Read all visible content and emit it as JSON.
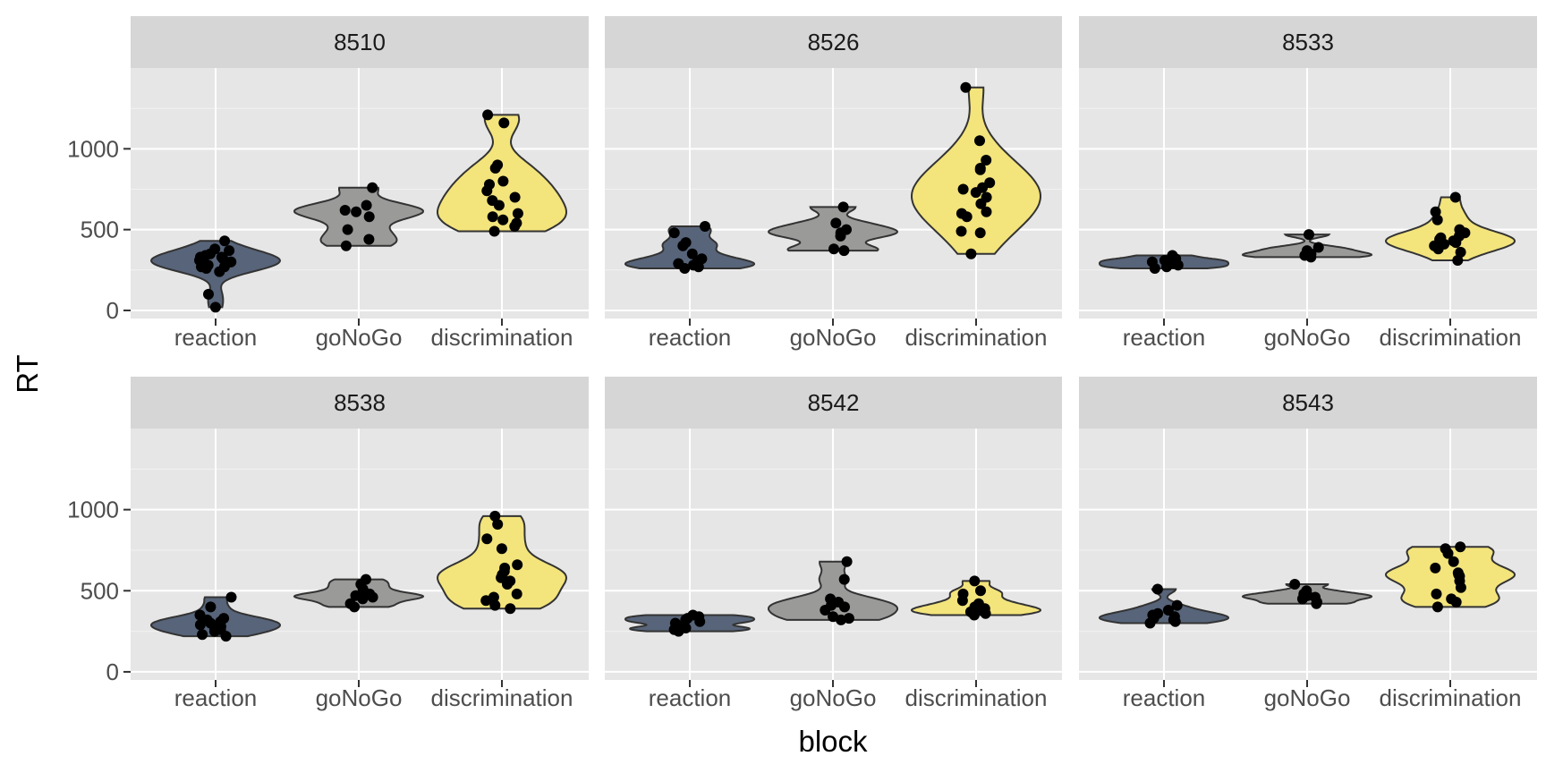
{
  "chart_data": {
    "type": "violin",
    "xlabel": "block",
    "ylabel": "RT",
    "ylim": [
      -50,
      1500
    ],
    "yticks": [
      0,
      500,
      1000
    ],
    "categories": [
      "reaction",
      "goNoGo",
      "discrimination"
    ],
    "colors": {
      "reaction": "#576479",
      "goNoGo": "#9a9a99",
      "discrimination": "#f3e47c",
      "panel_bg": "#e6e6e6",
      "strip_bg": "#d6d6d6",
      "point": "#000000"
    },
    "layout": "2 rows x 3 columns",
    "facets": [
      {
        "label": "8510",
        "groups": [
          {
            "category": "reaction",
            "points": [
              310,
              340,
              330,
              280,
              260,
              270,
              300,
              290,
              350,
              370,
              320,
              430,
              380,
              100,
              20,
              240,
              300,
              330,
              270
            ]
          },
          {
            "category": "goNoGo",
            "points": [
              760,
              650,
              620,
              610,
              580,
              500,
              440,
              400
            ]
          },
          {
            "category": "discrimination",
            "points": [
              1210,
              1160,
              900,
              880,
              800,
              780,
              740,
              700,
              680,
              650,
              600,
              580,
              560,
              540,
              520,
              490
            ]
          }
        ]
      },
      {
        "label": "8526",
        "groups": [
          {
            "category": "reaction",
            "points": [
              520,
              480,
              420,
              400,
              350,
              320,
              300,
              290,
              280,
              270,
              260
            ]
          },
          {
            "category": "goNoGo",
            "points": [
              640,
              540,
              500,
              480,
              460,
              380,
              370
            ]
          },
          {
            "category": "discrimination",
            "points": [
              1380,
              1050,
              930,
              880,
              870,
              790,
              760,
              750,
              730,
              700,
              660,
              610,
              600,
              580,
              490,
              480,
              350
            ]
          }
        ]
      },
      {
        "label": "8533",
        "groups": [
          {
            "category": "reaction",
            "points": [
              340,
              320,
              310,
              300,
              290,
              280,
              270,
              260
            ]
          },
          {
            "category": "goNoGo",
            "points": [
              470,
              390,
              370,
              350,
              340,
              330
            ]
          },
          {
            "category": "discrimination",
            "points": [
              700,
              610,
              560,
              500,
              480,
              460,
              450,
              440,
              430,
              420,
              410,
              400,
              380,
              360,
              310
            ]
          }
        ]
      },
      {
        "label": "8538",
        "groups": [
          {
            "category": "reaction",
            "points": [
              460,
              400,
              350,
              330,
              320,
              310,
              300,
              290,
              280,
              270,
              260,
              250,
              230,
              220
            ]
          },
          {
            "category": "goNoGo",
            "points": [
              570,
              540,
              510,
              480,
              470,
              460,
              450,
              420,
              400
            ]
          },
          {
            "category": "discrimination",
            "points": [
              960,
              910,
              820,
              760,
              660,
              640,
              620,
              600,
              580,
              560,
              540,
              480,
              460,
              440,
              410,
              390
            ]
          }
        ]
      },
      {
        "label": "8542",
        "groups": [
          {
            "category": "reaction",
            "points": [
              350,
              340,
              330,
              320,
              310,
              300,
              280,
              270,
              260,
              250
            ]
          },
          {
            "category": "goNoGo",
            "points": [
              680,
              570,
              450,
              430,
              410,
              400,
              380,
              340,
              330,
              320
            ]
          },
          {
            "category": "discrimination",
            "points": [
              560,
              500,
              480,
              440,
              420,
              400,
              390,
              380,
              370,
              360,
              350
            ]
          }
        ]
      },
      {
        "label": "8543",
        "groups": [
          {
            "category": "reaction",
            "points": [
              510,
              410,
              380,
              360,
              350,
              340,
              330,
              320,
              310,
              300
            ]
          },
          {
            "category": "goNoGo",
            "points": [
              540,
              500,
              480,
              470,
              460,
              450,
              430,
              420
            ]
          },
          {
            "category": "discrimination",
            "points": [
              770,
              760,
              730,
              680,
              640,
              610,
              600,
              590,
              560,
              520,
              480,
              450,
              430,
              400
            ]
          }
        ]
      }
    ]
  }
}
